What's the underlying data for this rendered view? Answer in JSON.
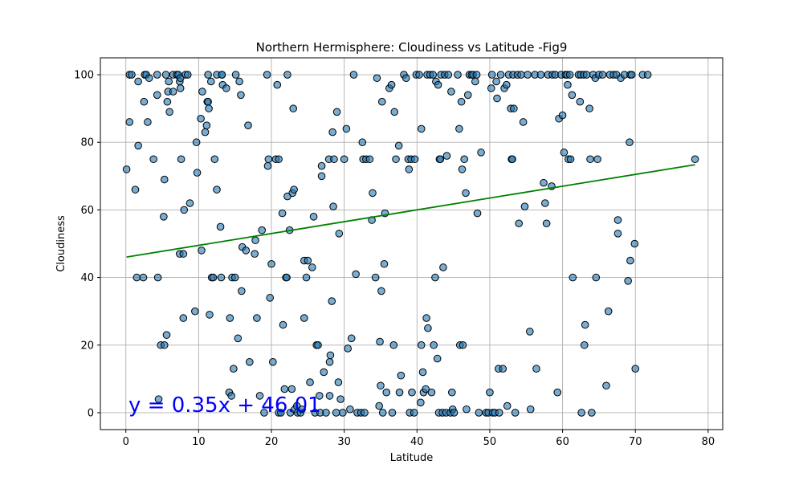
{
  "chart_data": {
    "type": "scatter",
    "title": "Northern Hermisphere: Cloudiness vs Latitude -Fig9",
    "xlabel": "Latitude",
    "ylabel": "Cloudiness",
    "xlim": [
      -3.5,
      82
    ],
    "ylim": [
      -5,
      105
    ],
    "x_ticks": [
      0,
      10,
      20,
      30,
      40,
      50,
      60,
      70,
      80
    ],
    "y_ticks": [
      0,
      20,
      40,
      60,
      80,
      100
    ],
    "grid": true,
    "colors": {
      "points": "#1f77b4",
      "point_edge": "#000000",
      "regression": "#008000",
      "equation": "#0000ff"
    },
    "regression": {
      "slope": 0.35,
      "intercept": 46.01,
      "x_range": [
        0.1,
        78.2
      ],
      "equation_text": "y = 0.35x + 46.01"
    },
    "points": [
      [
        0.1,
        72
      ],
      [
        0.5,
        86
      ],
      [
        0.5,
        100
      ],
      [
        0.8,
        100
      ],
      [
        1.3,
        66
      ],
      [
        1.5,
        40
      ],
      [
        1.7,
        79
      ],
      [
        1.7,
        98
      ],
      [
        2.4,
        40
      ],
      [
        2.5,
        92
      ],
      [
        2.6,
        100
      ],
      [
        2.8,
        100
      ],
      [
        3.0,
        86
      ],
      [
        3.2,
        99
      ],
      [
        3.8,
        75
      ],
      [
        4.3,
        94
      ],
      [
        4.3,
        100
      ],
      [
        4.4,
        40
      ],
      [
        4.5,
        4
      ],
      [
        4.8,
        20
      ],
      [
        5.2,
        58
      ],
      [
        5.3,
        69
      ],
      [
        5.3,
        20
      ],
      [
        5.5,
        100
      ],
      [
        5.6,
        23
      ],
      [
        5.7,
        92
      ],
      [
        5.8,
        95
      ],
      [
        5.9,
        98
      ],
      [
        6.0,
        89
      ],
      [
        6.5,
        100
      ],
      [
        6.5,
        95
      ],
      [
        7.0,
        100
      ],
      [
        7.2,
        100
      ],
      [
        7.4,
        47
      ],
      [
        7.4,
        98
      ],
      [
        7.5,
        96
      ],
      [
        7.5,
        99
      ],
      [
        7.6,
        75
      ],
      [
        7.9,
        47
      ],
      [
        7.9,
        28
      ],
      [
        8.0,
        60
      ],
      [
        8.2,
        100
      ],
      [
        8.5,
        100
      ],
      [
        8.8,
        62
      ],
      [
        9.5,
        30
      ],
      [
        9.7,
        80
      ],
      [
        9.8,
        71
      ],
      [
        10.3,
        87
      ],
      [
        10.4,
        48
      ],
      [
        10.5,
        95
      ],
      [
        10.9,
        83
      ],
      [
        11.1,
        85
      ],
      [
        11.2,
        92
      ],
      [
        11.3,
        92
      ],
      [
        11.3,
        100
      ],
      [
        11.4,
        90
      ],
      [
        11.5,
        29
      ],
      [
        11.7,
        98
      ],
      [
        11.8,
        40
      ],
      [
        12.0,
        40
      ],
      [
        12.2,
        75
      ],
      [
        12.5,
        66
      ],
      [
        12.5,
        100
      ],
      [
        13.0,
        55
      ],
      [
        13.1,
        40
      ],
      [
        13.2,
        100
      ],
      [
        13.2,
        100
      ],
      [
        13.3,
        97
      ],
      [
        13.8,
        96
      ],
      [
        14.2,
        6
      ],
      [
        14.3,
        28
      ],
      [
        14.5,
        5
      ],
      [
        14.6,
        40
      ],
      [
        14.8,
        13
      ],
      [
        15.0,
        40
      ],
      [
        15.1,
        100
      ],
      [
        15.4,
        22
      ],
      [
        15.6,
        98
      ],
      [
        15.8,
        94
      ],
      [
        15.9,
        36
      ],
      [
        16.0,
        49
      ],
      [
        16.5,
        48
      ],
      [
        16.8,
        85
      ],
      [
        17.0,
        15
      ],
      [
        17.7,
        47
      ],
      [
        17.8,
        51
      ],
      [
        18.0,
        28
      ],
      [
        18.4,
        5
      ],
      [
        18.7,
        54
      ],
      [
        19.0,
        0
      ],
      [
        19.4,
        100
      ],
      [
        19.5,
        73
      ],
      [
        19.6,
        75
      ],
      [
        19.8,
        34
      ],
      [
        20.0,
        44
      ],
      [
        20.2,
        15
      ],
      [
        20.6,
        75
      ],
      [
        20.8,
        97
      ],
      [
        21.0,
        75
      ],
      [
        21.0,
        0
      ],
      [
        21.3,
        0
      ],
      [
        21.5,
        59
      ],
      [
        21.6,
        26
      ],
      [
        21.8,
        7
      ],
      [
        22.0,
        40
      ],
      [
        22.1,
        40
      ],
      [
        22.2,
        100
      ],
      [
        22.2,
        64
      ],
      [
        22.5,
        54
      ],
      [
        22.6,
        0
      ],
      [
        22.8,
        7
      ],
      [
        22.9,
        65
      ],
      [
        23.0,
        90
      ],
      [
        23.1,
        66
      ],
      [
        23.2,
        1
      ],
      [
        23.5,
        2
      ],
      [
        23.6,
        0
      ],
      [
        24.0,
        0
      ],
      [
        24.2,
        1
      ],
      [
        24.5,
        28
      ],
      [
        24.5,
        45
      ],
      [
        24.8,
        40
      ],
      [
        25.0,
        45
      ],
      [
        25.3,
        9
      ],
      [
        25.6,
        43
      ],
      [
        25.8,
        58
      ],
      [
        26.0,
        0
      ],
      [
        26.2,
        20
      ],
      [
        26.4,
        20
      ],
      [
        26.6,
        5
      ],
      [
        26.7,
        0
      ],
      [
        26.9,
        73
      ],
      [
        26.9,
        70
      ],
      [
        27.2,
        12
      ],
      [
        27.5,
        0
      ],
      [
        27.9,
        75
      ],
      [
        28.0,
        15
      ],
      [
        28.0,
        5
      ],
      [
        28.1,
        17
      ],
      [
        28.3,
        33
      ],
      [
        28.4,
        83
      ],
      [
        28.5,
        61
      ],
      [
        28.6,
        75
      ],
      [
        28.9,
        0
      ],
      [
        29.0,
        89
      ],
      [
        29.2,
        9
      ],
      [
        29.3,
        53
      ],
      [
        29.5,
        4
      ],
      [
        29.8,
        0
      ],
      [
        30.0,
        75
      ],
      [
        30.3,
        84
      ],
      [
        30.5,
        19
      ],
      [
        30.8,
        1
      ],
      [
        31.0,
        22
      ],
      [
        31.3,
        100
      ],
      [
        31.6,
        41
      ],
      [
        31.8,
        0
      ],
      [
        32.3,
        0
      ],
      [
        32.5,
        80
      ],
      [
        32.6,
        75
      ],
      [
        32.8,
        0
      ],
      [
        33.0,
        75
      ],
      [
        33.5,
        75
      ],
      [
        33.8,
        57
      ],
      [
        33.9,
        65
      ],
      [
        34.3,
        40
      ],
      [
        34.5,
        99
      ],
      [
        34.8,
        2
      ],
      [
        34.9,
        21
      ],
      [
        35.0,
        8
      ],
      [
        35.1,
        36
      ],
      [
        35.2,
        92
      ],
      [
        35.3,
        0
      ],
      [
        35.5,
        44
      ],
      [
        35.6,
        59
      ],
      [
        35.8,
        6
      ],
      [
        36.2,
        96
      ],
      [
        36.5,
        97
      ],
      [
        36.6,
        0
      ],
      [
        36.8,
        20
      ],
      [
        36.9,
        89
      ],
      [
        37.1,
        75
      ],
      [
        37.5,
        79
      ],
      [
        37.6,
        6
      ],
      [
        37.8,
        11
      ],
      [
        38.2,
        100
      ],
      [
        38.5,
        99
      ],
      [
        38.8,
        75
      ],
      [
        38.9,
        72
      ],
      [
        39.0,
        0
      ],
      [
        39.2,
        75
      ],
      [
        39.3,
        6
      ],
      [
        39.6,
        0
      ],
      [
        39.7,
        75
      ],
      [
        39.9,
        100
      ],
      [
        40.3,
        100
      ],
      [
        40.5,
        3
      ],
      [
        40.6,
        84
      ],
      [
        40.6,
        20
      ],
      [
        40.8,
        12
      ],
      [
        40.9,
        6
      ],
      [
        41.2,
        7
      ],
      [
        41.3,
        28
      ],
      [
        41.4,
        100
      ],
      [
        41.5,
        25
      ],
      [
        41.8,
        100
      ],
      [
        42.0,
        6
      ],
      [
        42.2,
        100
      ],
      [
        42.3,
        20
      ],
      [
        42.5,
        40
      ],
      [
        42.6,
        98
      ],
      [
        42.8,
        16
      ],
      [
        42.9,
        97
      ],
      [
        43.0,
        0
      ],
      [
        43.1,
        75
      ],
      [
        43.2,
        75
      ],
      [
        43.3,
        100
      ],
      [
        43.5,
        0
      ],
      [
        43.6,
        43
      ],
      [
        43.8,
        100
      ],
      [
        44.0,
        0
      ],
      [
        44.1,
        76
      ],
      [
        44.3,
        100
      ],
      [
        44.6,
        0
      ],
      [
        44.7,
        95
      ],
      [
        44.8,
        6
      ],
      [
        44.9,
        1
      ],
      [
        45.1,
        0
      ],
      [
        45.6,
        100
      ],
      [
        45.8,
        84
      ],
      [
        45.9,
        20
      ],
      [
        46.1,
        92
      ],
      [
        46.2,
        72
      ],
      [
        46.3,
        20
      ],
      [
        46.5,
        75
      ],
      [
        46.7,
        65
      ],
      [
        46.8,
        1
      ],
      [
        47.0,
        94
      ],
      [
        47.2,
        100
      ],
      [
        47.5,
        100
      ],
      [
        47.7,
        100
      ],
      [
        48.0,
        98
      ],
      [
        48.2,
        100
      ],
      [
        48.3,
        59
      ],
      [
        48.5,
        0
      ],
      [
        48.8,
        77
      ],
      [
        49.5,
        0
      ],
      [
        49.8,
        0
      ],
      [
        50.0,
        6
      ],
      [
        50.2,
        96
      ],
      [
        50.3,
        100
      ],
      [
        50.4,
        0
      ],
      [
        50.7,
        0
      ],
      [
        50.9,
        98
      ],
      [
        51.0,
        93
      ],
      [
        51.2,
        13
      ],
      [
        51.3,
        0
      ],
      [
        51.5,
        100
      ],
      [
        51.8,
        13
      ],
      [
        52.0,
        96
      ],
      [
        52.3,
        97
      ],
      [
        52.4,
        2
      ],
      [
        52.6,
        100
      ],
      [
        52.9,
        90
      ],
      [
        53.0,
        75
      ],
      [
        53.1,
        75
      ],
      [
        53.2,
        100
      ],
      [
        53.3,
        90
      ],
      [
        53.5,
        0
      ],
      [
        53.8,
        100
      ],
      [
        54.0,
        56
      ],
      [
        54.3,
        100
      ],
      [
        54.6,
        86
      ],
      [
        54.8,
        61
      ],
      [
        55.2,
        100
      ],
      [
        55.5,
        24
      ],
      [
        55.6,
        1
      ],
      [
        56.2,
        100
      ],
      [
        56.4,
        13
      ],
      [
        57.0,
        100
      ],
      [
        57.4,
        68
      ],
      [
        57.6,
        62
      ],
      [
        57.8,
        56
      ],
      [
        58.0,
        100
      ],
      [
        58.5,
        67
      ],
      [
        58.6,
        100
      ],
      [
        59.0,
        100
      ],
      [
        59.3,
        6
      ],
      [
        59.5,
        87
      ],
      [
        59.8,
        100
      ],
      [
        60.0,
        88
      ],
      [
        60.2,
        77
      ],
      [
        60.4,
        100
      ],
      [
        60.6,
        100
      ],
      [
        60.7,
        97
      ],
      [
        60.8,
        75
      ],
      [
        61.0,
        100
      ],
      [
        61.1,
        75
      ],
      [
        61.3,
        94
      ],
      [
        61.4,
        40
      ],
      [
        62.2,
        100
      ],
      [
        62.4,
        92
      ],
      [
        62.5,
        100
      ],
      [
        62.6,
        0
      ],
      [
        62.9,
        100
      ],
      [
        63.0,
        20
      ],
      [
        63.1,
        26
      ],
      [
        63.3,
        100
      ],
      [
        63.7,
        90
      ],
      [
        63.8,
        75
      ],
      [
        64.0,
        0
      ],
      [
        64.2,
        100
      ],
      [
        64.5,
        99
      ],
      [
        64.6,
        40
      ],
      [
        64.8,
        75
      ],
      [
        65.0,
        100
      ],
      [
        65.5,
        100
      ],
      [
        66.0,
        8
      ],
      [
        66.3,
        30
      ],
      [
        66.5,
        100
      ],
      [
        67.0,
        100
      ],
      [
        67.4,
        100
      ],
      [
        67.6,
        53
      ],
      [
        67.6,
        57
      ],
      [
        68.0,
        99
      ],
      [
        68.5,
        100
      ],
      [
        69.0,
        39
      ],
      [
        69.2,
        80
      ],
      [
        69.3,
        100
      ],
      [
        69.3,
        45
      ],
      [
        69.5,
        100
      ],
      [
        69.9,
        50
      ],
      [
        70.0,
        13
      ],
      [
        71.0,
        100
      ],
      [
        71.7,
        100
      ],
      [
        78.2,
        75
      ]
    ]
  }
}
